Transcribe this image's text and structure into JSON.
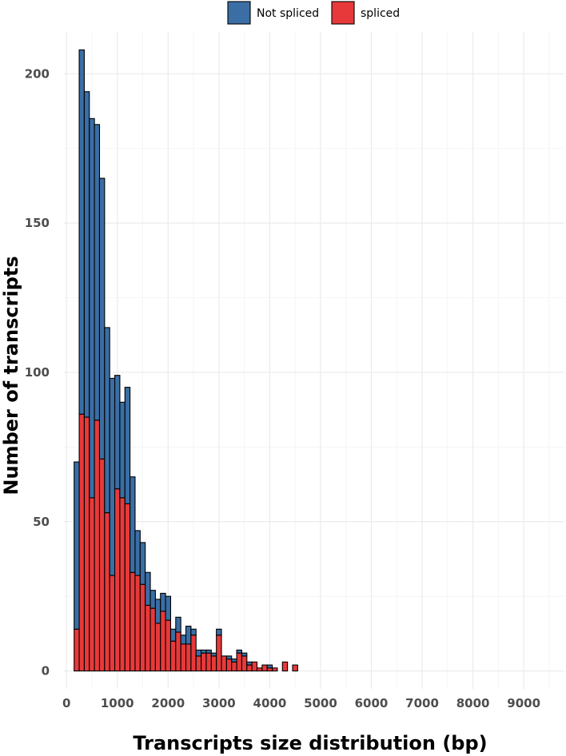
{
  "chart_data": {
    "type": "bar",
    "stacked": true,
    "xlabel": "Transcripts size distribution (bp)",
    "ylabel": "Number of transcripts",
    "xlim": [
      -50,
      9800
    ],
    "ylim": [
      -6,
      214
    ],
    "x_ticks": [
      0,
      1000,
      2000,
      3000,
      4000,
      5000,
      6000,
      7000,
      8000,
      9000
    ],
    "y_ticks": [
      0,
      50,
      100,
      150,
      200
    ],
    "bin_width": 100,
    "legend_position": "top",
    "grid": true,
    "colors": {
      "Not spliced": "#3a6ea5",
      "spliced": "#e8393a"
    },
    "x": [
      200,
      300,
      400,
      500,
      600,
      700,
      800,
      900,
      1000,
      1100,
      1200,
      1300,
      1400,
      1500,
      1600,
      1700,
      1800,
      1900,
      2000,
      2100,
      2200,
      2300,
      2400,
      2500,
      2600,
      2700,
      2800,
      2900,
      3000,
      3100,
      3200,
      3300,
      3400,
      3500,
      3600,
      3700,
      3800,
      3900,
      4000,
      4100,
      4200,
      4300,
      4400,
      4500,
      4600,
      4700,
      4800,
      4900,
      5000,
      5100,
      5200,
      5300,
      5400,
      5500,
      5600,
      5700,
      5800,
      5900,
      6000,
      6100,
      6200,
      6300,
      6400,
      6500,
      6600,
      6700,
      6800,
      6900,
      7000,
      7100,
      7200,
      7300,
      7400,
      7500,
      7600,
      7700,
      7800,
      7900,
      8000,
      8100,
      8200,
      8300,
      8400,
      8500,
      8600,
      8700,
      8800,
      8900,
      9000,
      9100,
      9200,
      9300,
      9400,
      9500,
      9600
    ],
    "series": [
      {
        "name": "Not spliced",
        "values": [
          56,
          122,
          109,
          127,
          99,
          94,
          62,
          66,
          38,
          32,
          39,
          32,
          15,
          14,
          11,
          6,
          8,
          6,
          8,
          4,
          5,
          3,
          6,
          2,
          2,
          1,
          1,
          1,
          2,
          0,
          1,
          1,
          1,
          1,
          1,
          0,
          0,
          0,
          1,
          0,
          0,
          0,
          0,
          0,
          0,
          0,
          0,
          0,
          0,
          0,
          0,
          0,
          0,
          0,
          0,
          0,
          0,
          0,
          0,
          0,
          0,
          0,
          0,
          0,
          0,
          0,
          0,
          0,
          0,
          0,
          0,
          0,
          0,
          0,
          0,
          0,
          0,
          0,
          0,
          0,
          0,
          0,
          0,
          0,
          0,
          0,
          0,
          0,
          0,
          0,
          0,
          0,
          0,
          0,
          0
        ]
      },
      {
        "name": "spliced",
        "values": [
          14,
          86,
          85,
          58,
          84,
          71,
          53,
          32,
          61,
          58,
          56,
          33,
          32,
          29,
          22,
          21,
          16,
          20,
          17,
          10,
          13,
          9,
          9,
          12,
          5,
          6,
          6,
          5,
          12,
          5,
          4,
          3,
          6,
          5,
          2,
          3,
          1,
          2,
          1,
          1,
          0,
          3,
          0,
          2,
          0,
          0,
          0,
          0,
          0,
          0,
          0,
          0,
          0,
          0,
          0,
          0,
          0,
          0,
          0,
          0,
          0,
          0,
          0,
          0,
          0,
          0,
          0,
          0,
          0,
          0,
          0,
          0,
          0,
          0,
          0,
          0,
          0,
          0,
          0,
          0,
          0,
          0,
          0,
          0,
          0,
          0,
          0,
          0,
          0,
          0,
          0,
          0,
          0,
          0,
          0
        ]
      }
    ]
  }
}
